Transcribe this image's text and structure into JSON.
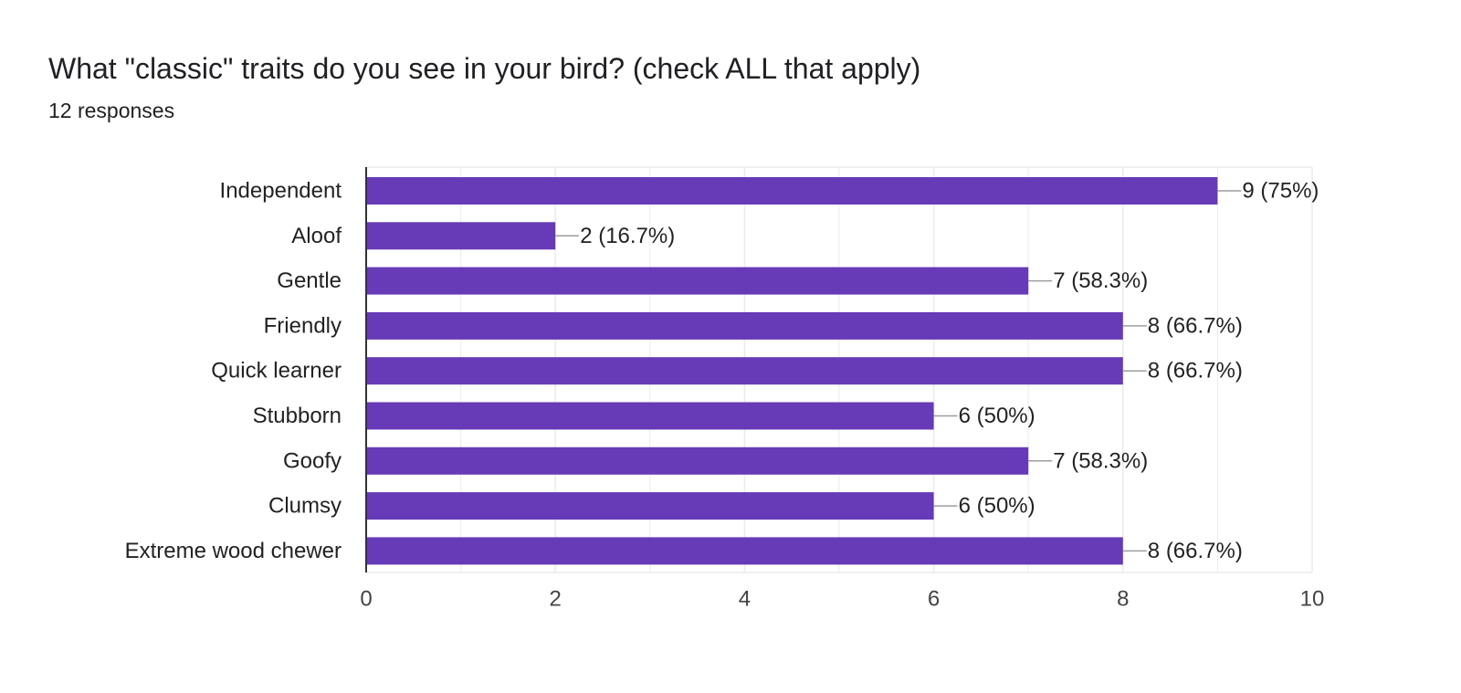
{
  "question": {
    "title": "What \"classic\" traits do you see in your bird? (check ALL that apply)",
    "responses": "12 responses"
  },
  "colors": {
    "bar": "#673ab7",
    "grid": "#ebebeb",
    "axis": "#333333",
    "leader": "#9e9e9e"
  },
  "chart_data": {
    "type": "bar",
    "orientation": "horizontal",
    "categories": [
      "Independent",
      "Aloof",
      "Gentle",
      "Friendly",
      "Quick learner",
      "Stubborn",
      "Goofy",
      "Clumsy",
      "Extreme wood chewer"
    ],
    "values": [
      9,
      2,
      7,
      8,
      8,
      6,
      7,
      6,
      8
    ],
    "data_labels": [
      "9 (75%)",
      "2 (16.7%)",
      "7 (58.3%)",
      "8 (66.7%)",
      "8 (66.7%)",
      "6 (50%)",
      "7 (58.3%)",
      "6 (50%)",
      "8 (66.7%)"
    ],
    "xlim": [
      0,
      10
    ],
    "xticks": [
      0,
      2,
      4,
      6,
      8,
      10
    ],
    "grid": true,
    "legend": "none"
  }
}
